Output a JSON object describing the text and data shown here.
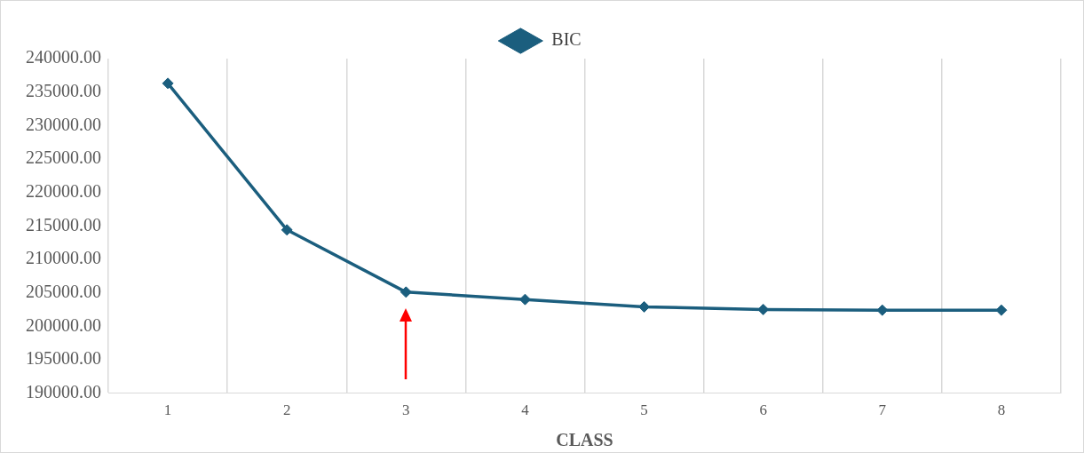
{
  "chart_data": {
    "type": "line",
    "xlabel": "CLASS",
    "categories": [
      "1",
      "2",
      "3",
      "4",
      "5",
      "6",
      "7",
      "8"
    ],
    "series": [
      {
        "name": "BIC",
        "color": "#1b5e7e",
        "values": [
          236300,
          214400,
          205100,
          204000,
          202900,
          202500,
          202400,
          202400
        ]
      }
    ],
    "ylim": [
      190000,
      240000
    ],
    "yticks": [
      {
        "value": 190000,
        "label": "190000.00"
      },
      {
        "value": 195000,
        "label": "195000.00"
      },
      {
        "value": 200000,
        "label": "200000.00"
      },
      {
        "value": 205000,
        "label": "205000.00"
      },
      {
        "value": 210000,
        "label": "210000.00"
      },
      {
        "value": 215000,
        "label": "215000.00"
      },
      {
        "value": 220000,
        "label": "220000.00"
      },
      {
        "value": 225000,
        "label": "225000.00"
      },
      {
        "value": 230000,
        "label": "230000.00"
      },
      {
        "value": 235000,
        "label": "235000.00"
      },
      {
        "value": 240000,
        "label": "240000.00"
      }
    ],
    "grid": "x",
    "legend": "top",
    "marker": "diamond",
    "line_style": "solid"
  }
}
